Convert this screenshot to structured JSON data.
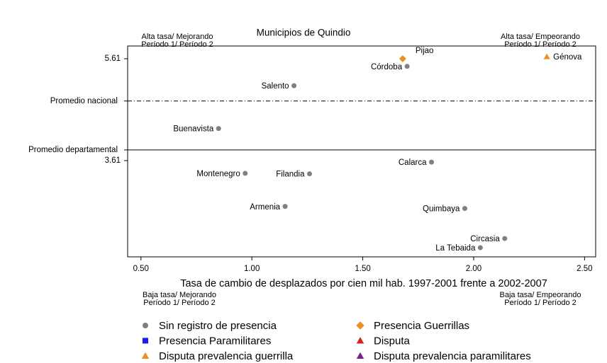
{
  "chart_data": {
    "type": "scatter",
    "title": "Municipios de Quindio",
    "x_label": "Tasa de cambio de desplazados por cien mil hab. 1997-2001 frente a 2002-2007",
    "xlim": [
      0.44,
      2.55
    ],
    "ylim": [
      1.72,
      5.86
    ],
    "xticks": [
      {
        "value": 0.5,
        "label": "0.50"
      },
      {
        "value": 1.0,
        "label": "1.00"
      },
      {
        "value": 1.5,
        "label": "1.50"
      },
      {
        "value": 2.0,
        "label": "2.00"
      },
      {
        "value": 2.5,
        "label": "2.50"
      }
    ],
    "yticks": [
      3.61,
      5.61
    ],
    "reference_lines": [
      {
        "label": "Promedio nacional",
        "value": 4.78,
        "style": "dashdot"
      },
      {
        "label": "Promedio departamental",
        "value": 3.82,
        "style": "solid"
      }
    ],
    "corner_annotations": {
      "top_left": [
        "Alta tasa/ Mejorando",
        "Período 1/ Período 2"
      ],
      "top_right": [
        "Alta tasa/ Empeorando",
        "Período 1/ Período 2"
      ],
      "bottom_left": [
        "Baja tasa/ Mejorando",
        "Período 1/ Período 2"
      ],
      "bottom_right": [
        "Baja tasa/ Empeorando",
        "Período 1/ Período 2"
      ]
    },
    "series": [
      {
        "name": "Sin registro de presencia",
        "color": "#808080",
        "marker": "circle",
        "labels": [
          "Córdoba",
          "Salento",
          "Buenavista",
          "Calarca",
          "Montenegro",
          "Filandia",
          "Armenia",
          "Quimbaya",
          "Circasia",
          "La Tebaida"
        ],
        "x": [
          1.7,
          1.19,
          0.85,
          1.81,
          0.97,
          1.26,
          1.15,
          1.96,
          2.14,
          2.03
        ],
        "values": [
          5.46,
          5.08,
          4.24,
          3.58,
          3.36,
          3.35,
          2.71,
          2.67,
          2.08,
          1.9
        ]
      },
      {
        "name": "Presencia Guerrillas",
        "color": "#f28c1c",
        "marker": "diamond",
        "labels": [
          "Pijao"
        ],
        "x": [
          1.68
        ],
        "values": [
          5.61
        ]
      },
      {
        "name": "Presencia Paramilitares",
        "color": "#1a1aff",
        "marker": "square",
        "labels": [],
        "x": [],
        "values": []
      },
      {
        "name": "Disputa",
        "color": "#e31a1c",
        "marker": "triangle",
        "labels": [],
        "x": [],
        "values": []
      },
      {
        "name": "Disputa prevalencia guerrilla",
        "color": "#f28c1c",
        "marker": "triangle",
        "labels": [
          "Génova"
        ],
        "x": [
          2.33
        ],
        "values": [
          5.65
        ]
      },
      {
        "name": "Disputa prevalencia paramilitares",
        "color": "#7b1f8f",
        "marker": "triangle",
        "labels": [],
        "x": [],
        "values": []
      }
    ]
  }
}
